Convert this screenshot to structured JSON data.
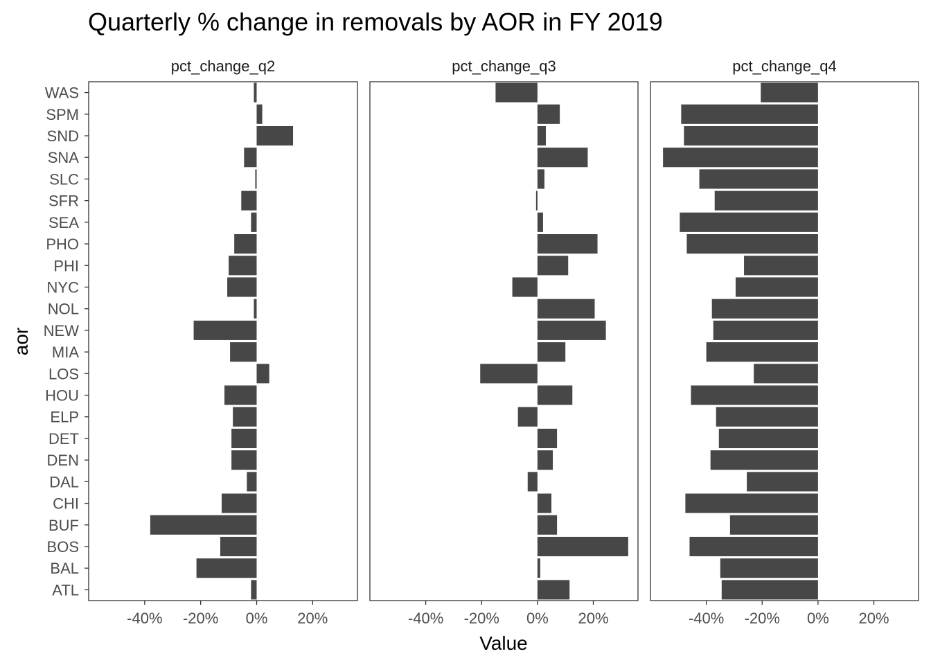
{
  "chart_data": {
    "type": "bar",
    "orientation": "horizontal",
    "title": "Quarterly % change in removals by AOR in FY 2019",
    "xlabel": "Value",
    "ylabel": "aor",
    "xlim": [
      -60,
      36
    ],
    "x_ticks": [
      -40,
      -20,
      0,
      20
    ],
    "x_tick_labels": [
      "-40%",
      "-20%",
      "0%",
      "20%"
    ],
    "categories": [
      "WAS",
      "SPM",
      "SND",
      "SNA",
      "SLC",
      "SFR",
      "SEA",
      "PHO",
      "PHI",
      "NYC",
      "NOL",
      "NEW",
      "MIA",
      "LOS",
      "HOU",
      "ELP",
      "DET",
      "DEN",
      "DAL",
      "CHI",
      "BUF",
      "BOS",
      "BAL",
      "ATL"
    ],
    "series": [
      {
        "name": "pct_change_q2",
        "values": [
          -1,
          2,
          13,
          -4.5,
          -0.5,
          -5.5,
          -2,
          -8,
          -10,
          -10.5,
          -1,
          -22.5,
          -9.5,
          4.5,
          -11.5,
          -8.5,
          -9,
          -9,
          -3.5,
          -12.5,
          -38,
          -13,
          -21.5,
          -2
        ]
      },
      {
        "name": "pct_change_q3",
        "values": [
          -15,
          8,
          3,
          18,
          2.5,
          -0.5,
          2,
          21.5,
          11,
          -9,
          20.5,
          24.5,
          10,
          -20.5,
          12.5,
          -7,
          7,
          5.5,
          -3.5,
          5,
          7,
          32.5,
          1,
          11.5
        ]
      },
      {
        "name": "pct_change_q4",
        "values": [
          -20.5,
          -49,
          -48,
          -55.5,
          -42.5,
          -37,
          -49.5,
          -47,
          -26.5,
          -29.5,
          -38,
          -37.5,
          -40,
          -23,
          -45.5,
          -36.5,
          -35.5,
          -38.5,
          -25.5,
          -47.5,
          -31.5,
          -46,
          -35,
          -34.5
        ]
      }
    ],
    "grid": false,
    "legend": "none",
    "bar_color": "#474747",
    "panel_border_color": "#333333"
  }
}
